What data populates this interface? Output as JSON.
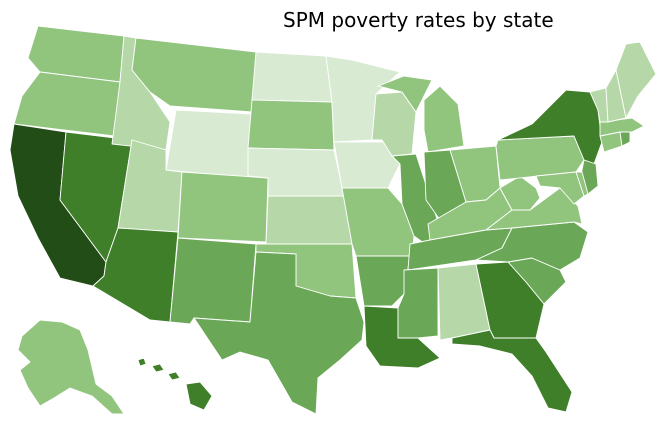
{
  "title": "SPM poverty rates by state",
  "palette": {
    "l1": "#d9ead2",
    "l2": "#b6d8a8",
    "l3": "#91c57e",
    "l4": "#6aa857",
    "l5": "#3f7f2a",
    "l6": "#234d16"
  },
  "states": [
    {
      "code": "WA",
      "level": "l3"
    },
    {
      "code": "OR",
      "level": "l3"
    },
    {
      "code": "CA",
      "level": "l6"
    },
    {
      "code": "NV",
      "level": "l5"
    },
    {
      "code": "ID",
      "level": "l2"
    },
    {
      "code": "MT",
      "level": "l3"
    },
    {
      "code": "WY",
      "level": "l1"
    },
    {
      "code": "UT",
      "level": "l2"
    },
    {
      "code": "AZ",
      "level": "l5"
    },
    {
      "code": "CO",
      "level": "l3"
    },
    {
      "code": "NM",
      "level": "l4"
    },
    {
      "code": "ND",
      "level": "l1"
    },
    {
      "code": "SD",
      "level": "l3"
    },
    {
      "code": "NE",
      "level": "l1"
    },
    {
      "code": "KS",
      "level": "l2"
    },
    {
      "code": "OK",
      "level": "l3"
    },
    {
      "code": "TX",
      "level": "l4"
    },
    {
      "code": "MN",
      "level": "l1"
    },
    {
      "code": "IA",
      "level": "l1"
    },
    {
      "code": "MO",
      "level": "l3"
    },
    {
      "code": "AR",
      "level": "l4"
    },
    {
      "code": "LA",
      "level": "l5"
    },
    {
      "code": "WI",
      "level": "l2"
    },
    {
      "code": "IL",
      "level": "l4"
    },
    {
      "code": "MI",
      "level": "l3"
    },
    {
      "code": "IN",
      "level": "l4"
    },
    {
      "code": "OH",
      "level": "l3"
    },
    {
      "code": "KY",
      "level": "l3"
    },
    {
      "code": "TN",
      "level": "l4"
    },
    {
      "code": "MS",
      "level": "l4"
    },
    {
      "code": "AL",
      "level": "l2"
    },
    {
      "code": "GA",
      "level": "l5"
    },
    {
      "code": "FL",
      "level": "l5"
    },
    {
      "code": "SC",
      "level": "l4"
    },
    {
      "code": "NC",
      "level": "l4"
    },
    {
      "code": "VA",
      "level": "l3"
    },
    {
      "code": "WV",
      "level": "l3"
    },
    {
      "code": "PA",
      "level": "l3"
    },
    {
      "code": "NY",
      "level": "l5"
    },
    {
      "code": "NJ",
      "level": "l4"
    },
    {
      "code": "DE",
      "level": "l3"
    },
    {
      "code": "MD",
      "level": "l3"
    },
    {
      "code": "CT",
      "level": "l3"
    },
    {
      "code": "RI",
      "level": "l4"
    },
    {
      "code": "MA",
      "level": "l3"
    },
    {
      "code": "VT",
      "level": "l2"
    },
    {
      "code": "NH",
      "level": "l2"
    },
    {
      "code": "ME",
      "level": "l2"
    },
    {
      "code": "AK",
      "level": "l3"
    },
    {
      "code": "HI",
      "level": "l5"
    }
  ]
}
